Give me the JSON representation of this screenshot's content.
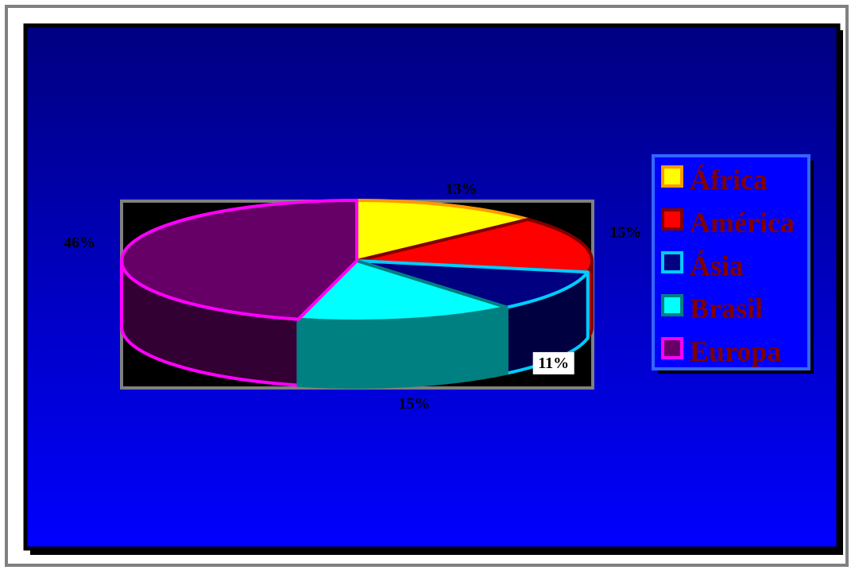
{
  "chart_data": {
    "type": "pie",
    "title": "",
    "legend_position": "right",
    "slices": [
      {
        "label": "África",
        "value": 13,
        "percent_label": "13%",
        "fill": "#FFFF00",
        "stroke": "#FF9900",
        "side": "#FFFF00"
      },
      {
        "label": "América",
        "value": 15,
        "percent_label": "15%",
        "fill": "#FF0000",
        "stroke": "#800000",
        "side": "#FF0000"
      },
      {
        "label": "Ásia",
        "value": 11,
        "percent_label": "11%",
        "fill": "#000080",
        "stroke": "#00CCFF",
        "side": "#000040"
      },
      {
        "label": "Brasil",
        "value": 15,
        "percent_label": "15%",
        "fill": "#00FFFF",
        "stroke": "#008080",
        "side": "#008080"
      },
      {
        "label": "Europa",
        "value": 46,
        "percent_label": "46%",
        "fill": "#660066",
        "stroke": "#FF00FF",
        "side": "#330033"
      }
    ]
  },
  "colors": {
    "background_top": "#000080",
    "background_bottom": "#0000FF",
    "plot_area": "#000000",
    "plot_border": "#808080",
    "label_text": "#000000"
  }
}
